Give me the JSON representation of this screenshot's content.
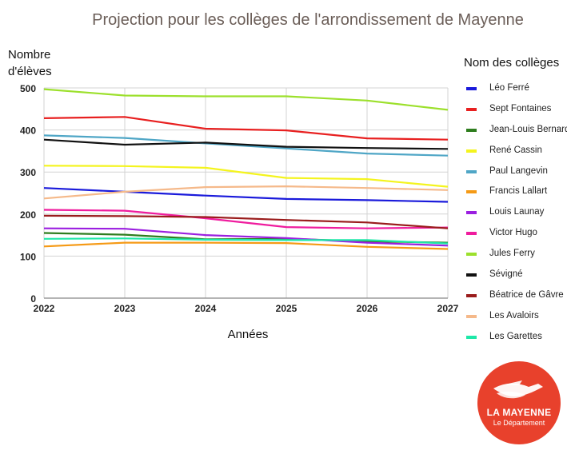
{
  "chart_data": {
    "type": "line",
    "title": "Projection pour les collèges de l'arrondissement de Mayenne",
    "xlabel": "Années",
    "ylabel": "Nombre d'élèves",
    "x": [
      "2022",
      "2023",
      "2024",
      "2025",
      "2026",
      "2027"
    ],
    "ylim": [
      0,
      500
    ],
    "yticks": [
      0,
      100,
      200,
      300,
      400,
      500
    ],
    "grid": true,
    "legend_title": "Nom des collèges",
    "legend_position": "right",
    "series": [
      {
        "name": "Léo Ferré",
        "color": "#1a1adb",
        "values": [
          262,
          253,
          244,
          236,
          233,
          229
        ]
      },
      {
        "name": "Sept Fontaines",
        "color": "#e82020",
        "values": [
          428,
          431,
          403,
          399,
          380,
          377
        ]
      },
      {
        "name": "Jean-Louis Bernard",
        "color": "#2e7d1e",
        "values": [
          155,
          151,
          140,
          141,
          135,
          132
        ]
      },
      {
        "name": "René Cassin",
        "color": "#f4f41e",
        "values": [
          315,
          314,
          310,
          286,
          283,
          265
        ]
      },
      {
        "name": "Paul Langevin",
        "color": "#4fa6c6",
        "values": [
          387,
          381,
          368,
          356,
          344,
          339
        ]
      },
      {
        "name": "Francis Lallart",
        "color": "#f59a16",
        "values": [
          123,
          132,
          132,
          131,
          122,
          117
        ]
      },
      {
        "name": "Louis Launay",
        "color": "#9b1fe0",
        "values": [
          166,
          165,
          150,
          143,
          132,
          125
        ]
      },
      {
        "name": "Victor Hugo",
        "color": "#ef1c9e",
        "values": [
          210,
          208,
          190,
          169,
          166,
          168
        ]
      },
      {
        "name": "Jules Ferry",
        "color": "#9ce02c",
        "values": [
          497,
          482,
          480,
          480,
          470,
          448
        ]
      },
      {
        "name": "Sévigné",
        "color": "#111111",
        "values": [
          377,
          365,
          370,
          360,
          357,
          355
        ]
      },
      {
        "name": "Béatrice de Gâvre",
        "color": "#9a1c1c",
        "values": [
          196,
          195,
          193,
          186,
          180,
          166
        ]
      },
      {
        "name": "Les Avaloirs",
        "color": "#f5b98a",
        "values": [
          237,
          253,
          264,
          266,
          262,
          257
        ]
      },
      {
        "name": "Les Garettes",
        "color": "#1ee8a8",
        "values": [
          141,
          142,
          139,
          138,
          138,
          130
        ]
      }
    ]
  },
  "logo": {
    "name": "LA MAYENNE",
    "subtitle": "Le Département",
    "color": "#e8412c"
  }
}
